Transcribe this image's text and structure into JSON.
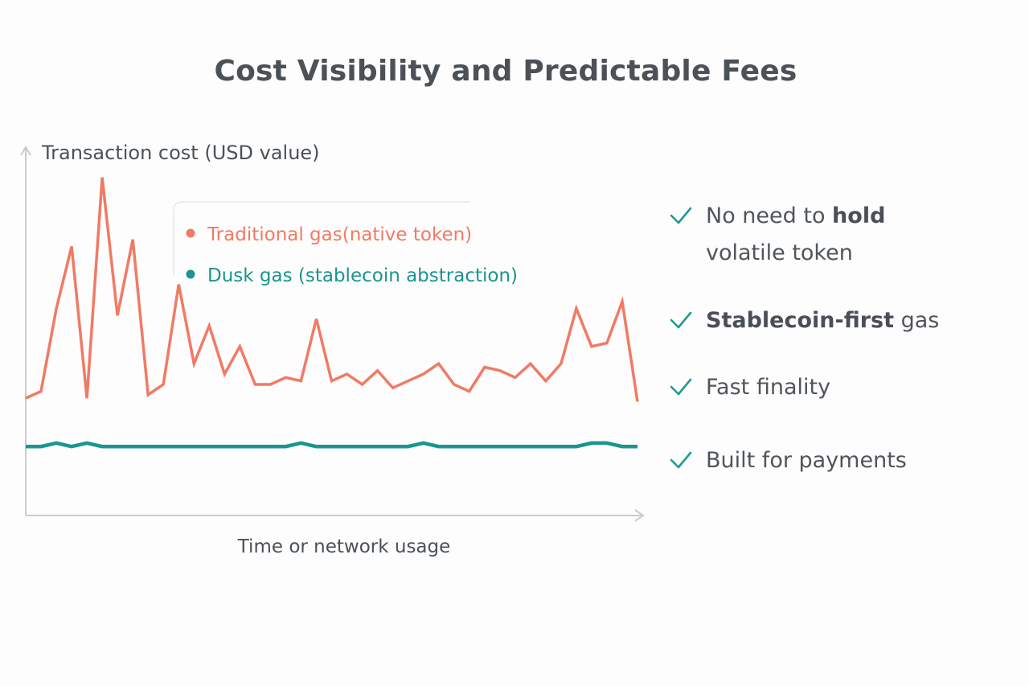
{
  "title": "Cost Visibility and Predictable Fees",
  "colors": {
    "traditional": "#f17a65",
    "dusk": "#1a9590",
    "axis": "#c8ccd0",
    "text": "#4b5157",
    "check": "#1f9a92"
  },
  "bullets": [
    {
      "parts": [
        {
          "text": "No need to ",
          "bold": false
        },
        {
          "text": "hold",
          "bold": true
        }
      ],
      "line2": "volatile token"
    },
    {
      "parts": [
        {
          "text": "Stablecoin-first",
          "bold": true
        },
        {
          "text": " gas",
          "bold": false
        }
      ],
      "line2": ""
    },
    {
      "parts": [
        {
          "text": "Fast finality",
          "bold": false
        }
      ],
      "line2": ""
    },
    {
      "parts": [
        {
          "text": "Built for payments",
          "bold": false
        }
      ],
      "line2": ""
    }
  ],
  "chart_data": {
    "type": "line",
    "title": "Cost Visibility and Predictable Fees",
    "xlabel": "Time or network usage",
    "ylabel": "Transaction cost (USD value)",
    "ticks_shown": false,
    "ylim": [
      0,
      100
    ],
    "xlim": [
      0,
      40
    ],
    "grid": false,
    "legend_position": "top-left",
    "series": [
      {
        "name": "Traditional gas(native token)",
        "color": "#f17a65",
        "x": [
          0,
          1,
          2,
          3,
          4,
          5,
          6,
          7,
          8,
          9,
          10,
          11,
          12,
          13,
          14,
          15,
          16,
          17,
          18,
          19,
          20,
          21,
          22,
          23,
          24,
          25,
          26,
          27,
          28,
          29,
          30,
          31,
          32,
          33,
          34,
          35,
          36,
          37,
          38,
          39,
          40
        ],
        "values": [
          34,
          36,
          60,
          78,
          34,
          98,
          58,
          80,
          35,
          38,
          67,
          44,
          55,
          41,
          49,
          38,
          38,
          40,
          39,
          57,
          39,
          41,
          38,
          42,
          37,
          39,
          41,
          44,
          38,
          36,
          43,
          42,
          40,
          44,
          39,
          44,
          60,
          49,
          50,
          62,
          33
        ]
      },
      {
        "name": "Dusk gas (stablecoin abstraction)",
        "color": "#1a9590",
        "x": [
          0,
          1,
          2,
          3,
          4,
          5,
          6,
          7,
          8,
          9,
          10,
          11,
          12,
          13,
          14,
          15,
          16,
          17,
          18,
          19,
          20,
          21,
          22,
          23,
          24,
          25,
          26,
          27,
          28,
          29,
          30,
          31,
          32,
          33,
          34,
          35,
          36,
          37,
          38,
          39,
          40
        ],
        "values": [
          20,
          20,
          21,
          20,
          21,
          20,
          20,
          20,
          20,
          20,
          20,
          20,
          20,
          20,
          20,
          20,
          20,
          20,
          21,
          20,
          20,
          20,
          20,
          20,
          20,
          20,
          21,
          20,
          20,
          20,
          20,
          20,
          20,
          20,
          20,
          20,
          20,
          21,
          21,
          20,
          20
        ]
      }
    ]
  }
}
